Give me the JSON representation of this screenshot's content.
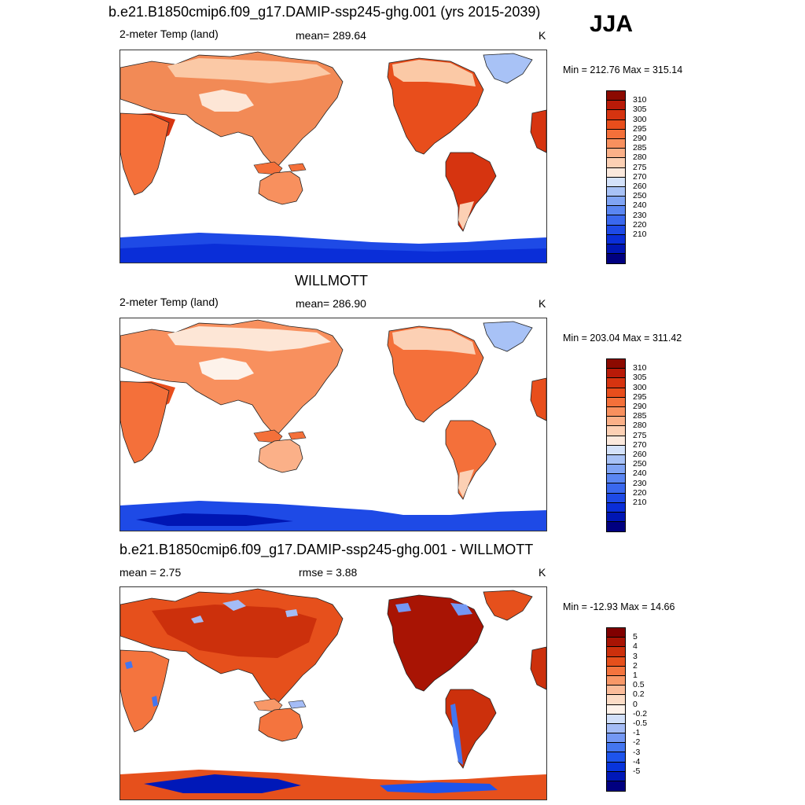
{
  "season": "JJA",
  "colors": {
    "abs_scale": [
      "#000080",
      "#0016b4",
      "#0a2ed8",
      "#1e4ae6",
      "#3a68ee",
      "#5a86f2",
      "#80a4f4",
      "#a8c2f6",
      "#d4e2fa",
      "#fbe9dd",
      "#fcd0b4",
      "#fbb088",
      "#f8905e",
      "#f4703a",
      "#e84e1c",
      "#d63410",
      "#b81a08",
      "#8c0a00"
    ],
    "diff_scale": [
      "#000080",
      "#0018b8",
      "#0834dc",
      "#1e54ec",
      "#4476f0",
      "#7498f4",
      "#a4bcf6",
      "#d2e0fa",
      "#fdf2ea",
      "#fcdcc6",
      "#fbbc9a",
      "#f89868",
      "#f4743e",
      "#e6501c",
      "#cc300c",
      "#a81404",
      "#800000"
    ]
  },
  "panels": [
    {
      "title": "b.e21.B1850cmip6.f09_g17.DAMIP-ssp245-ghg.001 (yrs 2015-2039)",
      "left_label": "2-meter Temp (land)",
      "center_label": "mean= 289.64",
      "units": "K",
      "minmax": "Min = 212.76 Max = 315.14",
      "ticks": [
        "310",
        "305",
        "300",
        "295",
        "290",
        "285",
        "280",
        "275",
        "270",
        "260",
        "250",
        "240",
        "230",
        "220",
        "210"
      ]
    },
    {
      "title": "WILLMOTT",
      "left_label": "2-meter Temp (land)",
      "center_label": "mean= 286.90",
      "units": "K",
      "minmax": "Min = 203.04 Max = 311.42",
      "ticks": [
        "310",
        "305",
        "300",
        "295",
        "290",
        "285",
        "280",
        "275",
        "270",
        "260",
        "250",
        "240",
        "230",
        "220",
        "210"
      ]
    },
    {
      "title": "b.e21.B1850cmip6.f09_g17.DAMIP-ssp245-ghg.001 - WILLMOTT",
      "left_label": "mean =   2.75",
      "center_label": "rmse =   3.88",
      "units": "K",
      "minmax": "Min = -12.93 Max =  14.66",
      "ticks": [
        "5",
        "4",
        "3",
        "2",
        "1",
        "0.5",
        "0.2",
        "0",
        "-0.2",
        "-0.5",
        "-1",
        "-2",
        "-3",
        "-4",
        "-5"
      ]
    }
  ],
  "chart_data": [
    {
      "type": "heatmap",
      "title": "b.e21.B1850cmip6.f09_g17.DAMIP-ssp245-ghg.001 (yrs 2015-2039)",
      "variable": "2-meter Temp (land)",
      "units": "K",
      "mean": 289.64,
      "min": 212.76,
      "max": 315.14,
      "colorbar_levels": [
        210,
        220,
        230,
        240,
        250,
        260,
        270,
        275,
        280,
        285,
        290,
        295,
        300,
        305,
        310
      ],
      "legend_placement": "right"
    },
    {
      "type": "heatmap",
      "title": "WILLMOTT",
      "variable": "2-meter Temp (land)",
      "units": "K",
      "mean": 286.9,
      "min": 203.04,
      "max": 311.42,
      "colorbar_levels": [
        210,
        220,
        230,
        240,
        250,
        260,
        270,
        275,
        280,
        285,
        290,
        295,
        300,
        305,
        310
      ],
      "legend_placement": "right"
    },
    {
      "type": "heatmap",
      "title": "b.e21.B1850cmip6.f09_g17.DAMIP-ssp245-ghg.001 - WILLMOTT",
      "units": "K",
      "mean": 2.75,
      "rmse": 3.88,
      "min": -12.93,
      "max": 14.66,
      "colorbar_levels": [
        -5,
        -4,
        -3,
        -2,
        -1,
        -0.5,
        -0.2,
        0,
        0.2,
        0.5,
        1,
        2,
        3,
        4,
        5
      ],
      "legend_placement": "right"
    }
  ]
}
